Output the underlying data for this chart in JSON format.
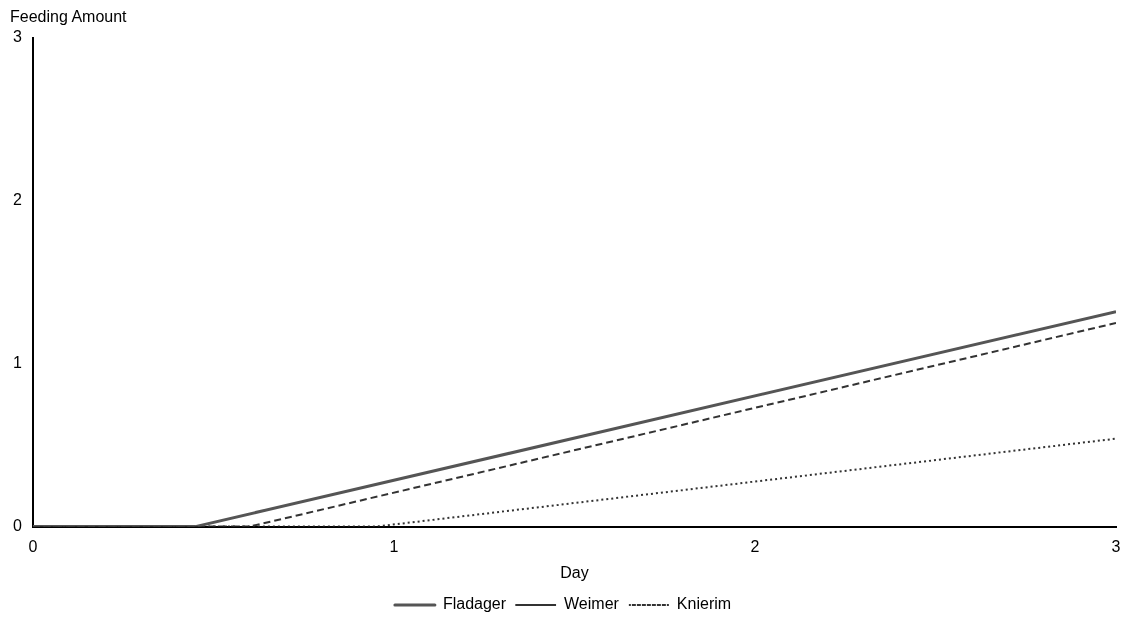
{
  "chart_data": {
    "type": "line",
    "xlabel": "Day",
    "ylabel": "Feeding Amount",
    "xlim": [
      0,
      3
    ],
    "xticks": [
      0,
      1,
      2,
      3
    ],
    "ylim": [
      0,
      3
    ],
    "yticks": [
      0,
      1,
      2,
      3
    ],
    "grid": false,
    "legend": "bottom",
    "marker": "none",
    "series": [
      {
        "name": "Fladager",
        "color": "#555555",
        "line_style": "solid",
        "x": [
          0,
          0.45,
          3
        ],
        "values": [
          0,
          0,
          1.32
        ]
      },
      {
        "name": "Weimer",
        "color": "#333333",
        "line_style": "dashed",
        "x": [
          0,
          0.6,
          3
        ],
        "values": [
          0,
          0,
          1.25
        ]
      },
      {
        "name": "Knierim",
        "color": "#333333",
        "line_style": "dotted",
        "x": [
          0,
          0.95,
          3
        ],
        "values": [
          0,
          0,
          0.54
        ]
      }
    ]
  }
}
